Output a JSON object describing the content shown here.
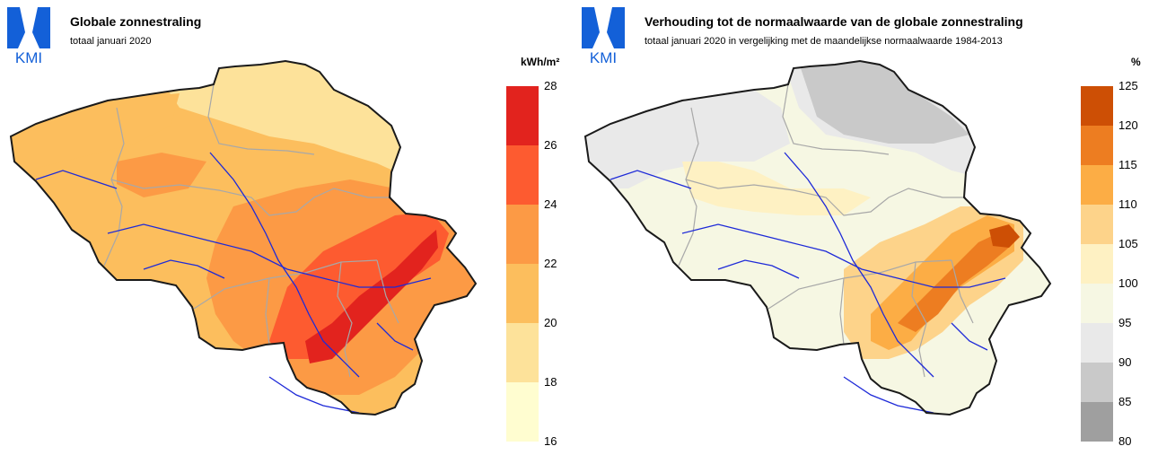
{
  "logo_text": "KMI",
  "left": {
    "title": "Globale zonnestraling",
    "subtitle": "totaal januari 2020",
    "legend": {
      "unit": "kWh/m²",
      "ticks": [
        "28",
        "26",
        "24",
        "22",
        "20",
        "18",
        "16"
      ],
      "colors": [
        "#e2231e",
        "#fd5b30",
        "#fc9a45",
        "#fcbe5d",
        "#fde29a",
        "#fffdd0"
      ]
    }
  },
  "right": {
    "title": "Verhouding tot de normaalwaarde van de globale zonnestraling",
    "subtitle": "totaal januari 2020 in vergelijking met de maandelijkse normaalwaarde 1984-2013",
    "legend": {
      "unit": "%",
      "ticks": [
        "125",
        "120",
        "115",
        "110",
        "105",
        "100",
        "95",
        "90",
        "85",
        "80"
      ],
      "colors": [
        "#cd4f05",
        "#ed7d21",
        "#fcad45",
        "#fdd38a",
        "#fef1c3",
        "#f6f7e3",
        "#e9e9e9",
        "#c9c9c9",
        "#9f9f9f"
      ]
    }
  }
}
